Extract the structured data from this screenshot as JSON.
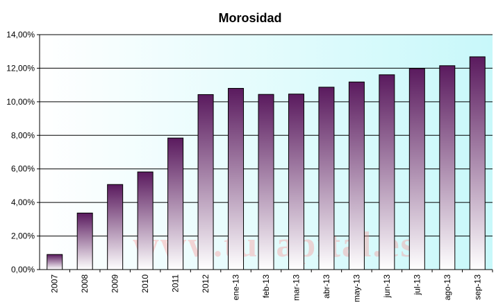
{
  "chart_data": {
    "type": "bar",
    "title": "Morosidad",
    "xlabel": "",
    "ylabel": "",
    "ylim": [
      0,
      14
    ],
    "y_ticks": [
      "0,00%",
      "2,00%",
      "4,00%",
      "6,00%",
      "8,00%",
      "10,00%",
      "12,00%",
      "14,00%"
    ],
    "categories": [
      "2007",
      "2008",
      "2009",
      "2010",
      "2011",
      "2012",
      "ene-13",
      "feb-13",
      "mar-13",
      "abr-13",
      "may-13",
      "jun-13",
      "jul-13",
      "ago-13",
      "sep-13"
    ],
    "values": [
      0.9,
      3.37,
      5.07,
      5.82,
      7.84,
      10.43,
      10.8,
      10.44,
      10.46,
      10.87,
      11.18,
      11.61,
      11.98,
      12.15,
      12.68
    ],
    "grid": true,
    "legend": "none"
  },
  "watermark": "www.tucapital.es",
  "colors": {
    "bar_top": "#5a1a5e",
    "bar_bottom": "#ffffff",
    "plot_left": "#ffffff",
    "plot_right": "#c8f8fa"
  }
}
